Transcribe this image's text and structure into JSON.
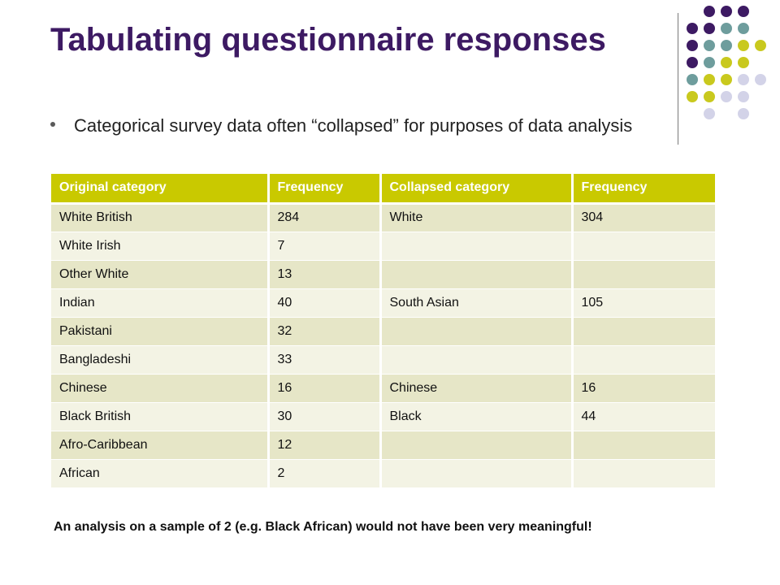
{
  "slide": {
    "title": "Tabulating questionnaire responses",
    "bullet": "Categorical survey data often “collapsed” for purposes of data analysis",
    "note": "An analysis on a sample of 2 (e.g. Black African) would not have been very meaningful!"
  },
  "table": {
    "headers": [
      "Original category",
      "Frequency",
      "Collapsed category",
      "Frequency"
    ],
    "rows": [
      [
        "White British",
        "284",
        "White",
        "304"
      ],
      [
        "White Irish",
        "7",
        "",
        ""
      ],
      [
        "Other White",
        "13",
        "",
        ""
      ],
      [
        "Indian",
        "40",
        "South Asian",
        "105"
      ],
      [
        "Pakistani",
        "32",
        "",
        ""
      ],
      [
        "Bangladeshi",
        "33",
        "",
        ""
      ],
      [
        "Chinese",
        "16",
        "Chinese",
        "16"
      ],
      [
        "Black British",
        "30",
        "Black",
        "44"
      ],
      [
        "Afro-Caribbean",
        "12",
        "",
        ""
      ],
      [
        "African",
        "2",
        "",
        ""
      ]
    ]
  },
  "colors": {
    "title": "#3d1a63",
    "header_bg": "#c9c900",
    "row_odd": "#e6e6c7",
    "row_even": "#f3f3e4",
    "dot_purple": "#3d1a63",
    "dot_teal": "#6e9d9d",
    "dot_olive": "#c9c91e",
    "dot_lavender": "#d3d3e8"
  }
}
